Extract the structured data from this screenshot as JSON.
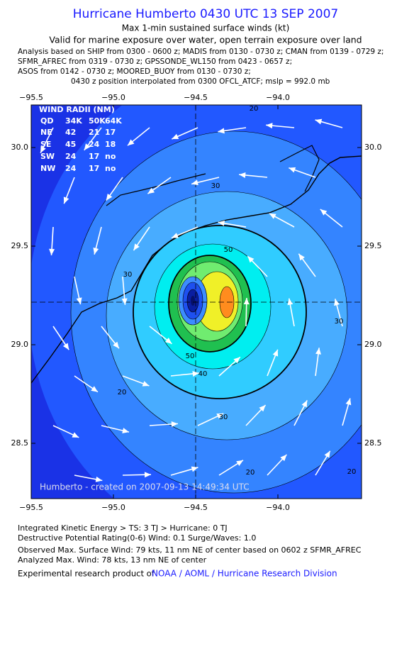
{
  "header": {
    "title": "Hurricane Humberto 0430 UTC 13 SEP 2007",
    "subtitle": "Max 1-min sustained surface winds (kt)",
    "validity": "Valid for marine exposure over water, open terrain exposure over land",
    "analysis_lines": [
      "Analysis based on  SHIP from 0300 - 0600 z;  MADIS from 0130 - 0730 z;  CMAN from 0139 - 0729 z;",
      "SFMR_AFREC from 0319 - 0730 z;  GPSSONDE_WL150 from 0423 - 0657 z;",
      "ASOS from 0142 - 0730 z;  MOORED_BUOY from 0130 - 0730 z;",
      "0430 z position interpolated from 0300 OFCL_ATCF; mslp = 992.0 mb"
    ]
  },
  "map": {
    "lon_ticks": [
      {
        "value": -95.5,
        "label": "−95.5"
      },
      {
        "value": -95.0,
        "label": "−95.0"
      },
      {
        "value": -94.5,
        "label": "−94.5"
      },
      {
        "value": -94.0,
        "label": "−94.0"
      }
    ],
    "lat_ticks": [
      {
        "value": 30.0,
        "label": "30.0"
      },
      {
        "value": 29.5,
        "label": "29.5"
      },
      {
        "value": 29.0,
        "label": "29.0"
      },
      {
        "value": 28.5,
        "label": "28.5"
      }
    ],
    "contour_labels": [
      20,
      30,
      30,
      20,
      30,
      40,
      50,
      50,
      30,
      20,
      20
    ],
    "credit": "Humberto - created on 2007-09-13 14:49:34 UTC"
  },
  "wind_radii": {
    "title": "WIND RADII (NM)",
    "columns": [
      "QD",
      "34K",
      "50K",
      "64K"
    ],
    "rows": [
      [
        "NE",
        42,
        21,
        17
      ],
      [
        "SE",
        45,
        24,
        18
      ],
      [
        "SW",
        24,
        17,
        "no"
      ],
      [
        "NW",
        24,
        17,
        "no"
      ]
    ]
  },
  "footer": {
    "lines": [
      "Integrated Kinetic Energy > TS: 3 TJ   > Hurricane: 0 TJ",
      "Destructive Potential Rating(0-6)  Wind: 0.1 Surge/Waves: 1.0",
      "Observed Max. Surface Wind: 79 kts, 11 nm NE of center based on 0602 z SFMR_AFREC",
      "Analyzed Max. Wind: 78 kts, 13 nm NE of center"
    ],
    "product_prefix": "Experimental research product of",
    "product_org": "NOAA / AOML / Hurricane Research Division"
  }
}
